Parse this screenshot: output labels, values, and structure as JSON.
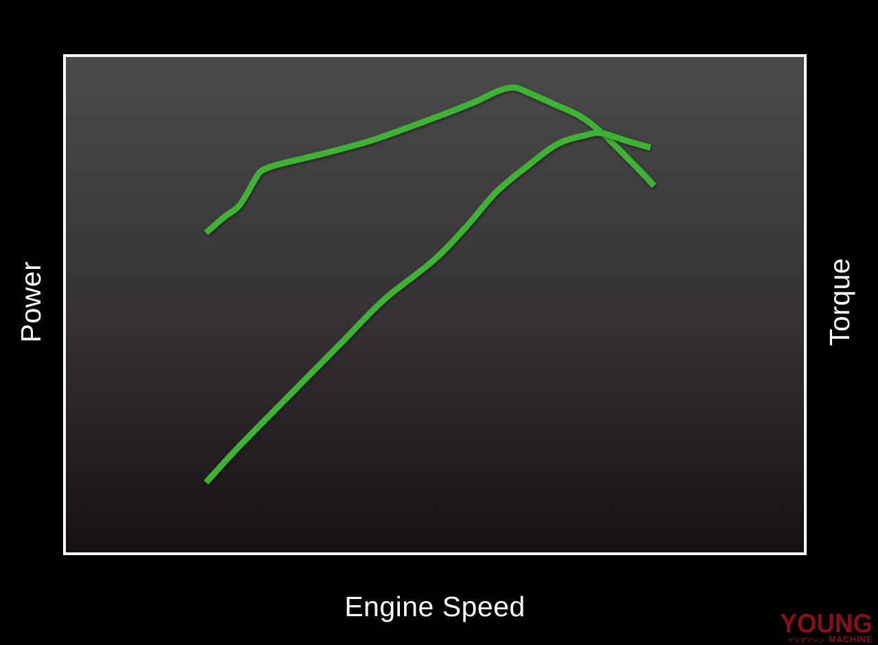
{
  "page": {
    "background": "#000000"
  },
  "chart": {
    "xlabel": "Engine Speed",
    "ylabel_left": "Power",
    "ylabel_right": "Torque",
    "frame_color": "#ffffff",
    "label_color": "#ffffff",
    "line_color": "#3fb236",
    "bg_gradient": {
      "top": "#4b4b4a",
      "mid": "#343034",
      "bottom": "#141014"
    }
  },
  "chart_data": {
    "type": "line",
    "title": "",
    "xlabel": "Engine Speed",
    "ylabel": "Power (left axis) / Torque (right axis)",
    "axes_numeric": false,
    "grid": false,
    "legend": "none (curves unlabeled; identified by axis labels)",
    "units_note": "No numeric ticks shown; points are percent of plot area: x = % along engine-speed axis, y = % height above plot bottom",
    "series": [
      {
        "name": "Torque",
        "points": [
          [
            19.0,
            64.5
          ],
          [
            21.3,
            67.5
          ],
          [
            23.3,
            69.7
          ],
          [
            24.5,
            72.3
          ],
          [
            25.6,
            75.2
          ],
          [
            26.4,
            76.9
          ],
          [
            28.1,
            78.0
          ],
          [
            31.0,
            79.1
          ],
          [
            35.7,
            80.8
          ],
          [
            41.3,
            83.1
          ],
          [
            46.8,
            86.0
          ],
          [
            51.5,
            88.6
          ],
          [
            55.7,
            91.1
          ],
          [
            58.7,
            93.2
          ],
          [
            60.8,
            93.8
          ],
          [
            62.8,
            92.7
          ],
          [
            66.4,
            90.3
          ],
          [
            69.6,
            88.1
          ],
          [
            72.4,
            85.0
          ],
          [
            75.5,
            80.5
          ],
          [
            78.0,
            76.7
          ],
          [
            79.7,
            74.0
          ]
        ]
      },
      {
        "name": "Power",
        "points": [
          [
            19.0,
            14.1
          ],
          [
            23.3,
            21.1
          ],
          [
            30.1,
            31.4
          ],
          [
            37.6,
            42.7
          ],
          [
            43.1,
            51.0
          ],
          [
            49.8,
            58.9
          ],
          [
            54.3,
            65.8
          ],
          [
            58.3,
            72.7
          ],
          [
            62.4,
            77.8
          ],
          [
            66.6,
            82.4
          ],
          [
            70.4,
            84.2
          ],
          [
            72.6,
            84.6
          ],
          [
            76.1,
            83.0
          ],
          [
            79.2,
            81.7
          ]
        ]
      }
    ]
  },
  "logo": {
    "line1": "YOUNG",
    "katakana": "ヤングマシン",
    "line2": "MACHINE",
    "color": "#861118"
  }
}
